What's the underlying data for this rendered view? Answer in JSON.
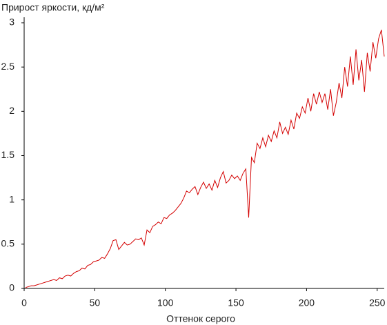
{
  "chart_data": {
    "type": "line",
    "title": "Прирост яркости, кд/м²",
    "x_label": "Оттенок серого",
    "x": [
      1,
      3,
      5,
      7,
      9,
      11,
      13,
      15,
      17,
      19,
      21,
      23,
      25,
      27,
      29,
      31,
      33,
      35,
      37,
      39,
      41,
      43,
      45,
      47,
      49,
      51,
      53,
      55,
      57,
      59,
      61,
      63,
      65,
      67,
      69,
      71,
      73,
      75,
      77,
      79,
      81,
      83,
      85,
      87,
      89,
      91,
      93,
      95,
      97,
      99,
      101,
      103,
      105,
      107,
      109,
      111,
      113,
      115,
      117,
      119,
      121,
      123,
      125,
      127,
      129,
      131,
      133,
      135,
      137,
      139,
      141,
      143,
      145,
      147,
      149,
      151,
      153,
      155,
      157,
      159,
      161,
      163,
      165,
      167,
      169,
      171,
      173,
      175,
      177,
      179,
      181,
      183,
      185,
      187,
      189,
      191,
      193,
      195,
      197,
      199,
      201,
      203,
      205,
      207,
      209,
      211,
      213,
      215,
      217,
      219,
      221,
      223,
      225,
      227,
      229,
      231,
      233,
      235,
      237,
      239,
      241,
      243,
      245,
      247,
      249,
      251,
      253,
      255
    ],
    "series": [
      {
        "name": "Прирост",
        "color": "#d40000",
        "values": [
          0.01,
          0.02,
          0.03,
          0.03,
          0.04,
          0.05,
          0.06,
          0.07,
          0.08,
          0.09,
          0.1,
          0.09,
          0.12,
          0.11,
          0.14,
          0.15,
          0.14,
          0.17,
          0.19,
          0.2,
          0.23,
          0.22,
          0.26,
          0.27,
          0.3,
          0.31,
          0.32,
          0.35,
          0.34,
          0.39,
          0.45,
          0.54,
          0.55,
          0.44,
          0.48,
          0.52,
          0.49,
          0.5,
          0.53,
          0.56,
          0.55,
          0.57,
          0.49,
          0.66,
          0.63,
          0.7,
          0.72,
          0.75,
          0.73,
          0.8,
          0.79,
          0.83,
          0.85,
          0.88,
          0.92,
          0.96,
          1.02,
          1.1,
          1.08,
          1.12,
          1.15,
          1.06,
          1.14,
          1.2,
          1.13,
          1.18,
          1.11,
          1.22,
          1.14,
          1.25,
          1.32,
          1.19,
          1.22,
          1.28,
          1.24,
          1.27,
          1.22,
          1.3,
          1.35,
          0.8,
          1.48,
          1.42,
          1.64,
          1.58,
          1.7,
          1.6,
          1.73,
          1.66,
          1.78,
          1.7,
          1.88,
          1.75,
          1.82,
          1.74,
          1.9,
          1.8,
          1.98,
          1.92,
          2.05,
          1.98,
          2.15,
          2.0,
          2.2,
          2.08,
          2.22,
          2.1,
          2.2,
          2.02,
          2.25,
          1.95,
          2.1,
          2.32,
          2.15,
          2.5,
          2.28,
          2.62,
          2.3,
          2.7,
          2.35,
          2.58,
          2.22,
          2.66,
          2.45,
          2.78,
          2.6,
          2.82,
          2.92,
          2.62
        ]
      }
    ],
    "xlim": [
      0,
      255
    ],
    "xticks": [
      0,
      50,
      100,
      150,
      200,
      250
    ],
    "ylim": [
      0,
      3
    ],
    "yticks": [
      0,
      0.5,
      1,
      1.5,
      2,
      2.5,
      3
    ],
    "grid": false
  }
}
